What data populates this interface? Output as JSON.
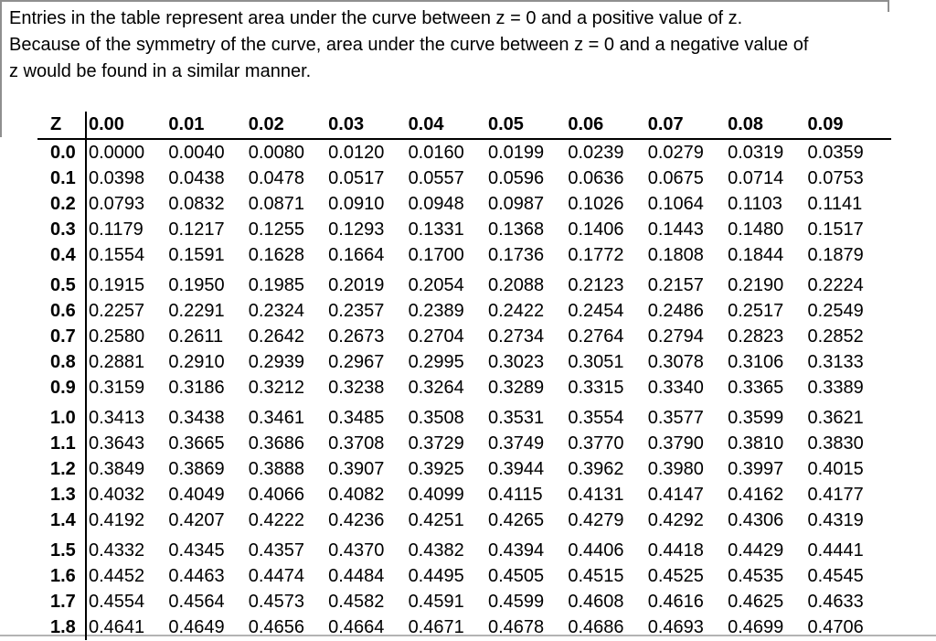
{
  "intro": {
    "lines": [
      "Entries in the table represent area under the curve between z = 0 and a positive value of z.",
      "Because of the symmetry of the curve, area under the curve between z = 0 and a negative value of",
      "z would be found in a similar manner."
    ]
  },
  "colors": {
    "frame_gray": "#8f8f8f",
    "rule_black": "#000000"
  },
  "table": {
    "corner_label": "Z",
    "column_headers": [
      "0.00",
      "0.01",
      "0.02",
      "0.03",
      "0.04",
      "0.05",
      "0.06",
      "0.07",
      "0.08",
      "0.09"
    ],
    "groups": [
      {
        "rows": [
          {
            "z": "0.0",
            "values": [
              "0.0000",
              "0.0040",
              "0.0080",
              "0.0120",
              "0.0160",
              "0.0199",
              "0.0239",
              "0.0279",
              "0.0319",
              "0.0359"
            ]
          },
          {
            "z": "0.1",
            "values": [
              "0.0398",
              "0.0438",
              "0.0478",
              "0.0517",
              "0.0557",
              "0.0596",
              "0.0636",
              "0.0675",
              "0.0714",
              "0.0753"
            ]
          },
          {
            "z": "0.2",
            "values": [
              "0.0793",
              "0.0832",
              "0.0871",
              "0.0910",
              "0.0948",
              "0.0987",
              "0.1026",
              "0.1064",
              "0.1103",
              "0.1141"
            ]
          },
          {
            "z": "0.3",
            "values": [
              "0.1179",
              "0.1217",
              "0.1255",
              "0.1293",
              "0.1331",
              "0.1368",
              "0.1406",
              "0.1443",
              "0.1480",
              "0.1517"
            ]
          },
          {
            "z": "0.4",
            "values": [
              "0.1554",
              "0.1591",
              "0.1628",
              "0.1664",
              "0.1700",
              "0.1736",
              "0.1772",
              "0.1808",
              "0.1844",
              "0.1879"
            ]
          }
        ]
      },
      {
        "rows": [
          {
            "z": "0.5",
            "values": [
              "0.1915",
              "0.1950",
              "0.1985",
              "0.2019",
              "0.2054",
              "0.2088",
              "0.2123",
              "0.2157",
              "0.2190",
              "0.2224"
            ]
          },
          {
            "z": "0.6",
            "values": [
              "0.2257",
              "0.2291",
              "0.2324",
              "0.2357",
              "0.2389",
              "0.2422",
              "0.2454",
              "0.2486",
              "0.2517",
              "0.2549"
            ]
          },
          {
            "z": "0.7",
            "values": [
              "0.2580",
              "0.2611",
              "0.2642",
              "0.2673",
              "0.2704",
              "0.2734",
              "0.2764",
              "0.2794",
              "0.2823",
              "0.2852"
            ]
          },
          {
            "z": "0.8",
            "values": [
              "0.2881",
              "0.2910",
              "0.2939",
              "0.2967",
              "0.2995",
              "0.3023",
              "0.3051",
              "0.3078",
              "0.3106",
              "0.3133"
            ]
          },
          {
            "z": "0.9",
            "values": [
              "0.3159",
              "0.3186",
              "0.3212",
              "0.3238",
              "0.3264",
              "0.3289",
              "0.3315",
              "0.3340",
              "0.3365",
              "0.3389"
            ]
          }
        ]
      },
      {
        "rows": [
          {
            "z": "1.0",
            "values": [
              "0.3413",
              "0.3438",
              "0.3461",
              "0.3485",
              "0.3508",
              "0.3531",
              "0.3554",
              "0.3577",
              "0.3599",
              "0.3621"
            ]
          },
          {
            "z": "1.1",
            "values": [
              "0.3643",
              "0.3665",
              "0.3686",
              "0.3708",
              "0.3729",
              "0.3749",
              "0.3770",
              "0.3790",
              "0.3810",
              "0.3830"
            ]
          },
          {
            "z": "1.2",
            "values": [
              "0.3849",
              "0.3869",
              "0.3888",
              "0.3907",
              "0.3925",
              "0.3944",
              "0.3962",
              "0.3980",
              "0.3997",
              "0.4015"
            ]
          },
          {
            "z": "1.3",
            "values": [
              "0.4032",
              "0.4049",
              "0.4066",
              "0.4082",
              "0.4099",
              "0.4115",
              "0.4131",
              "0.4147",
              "0.4162",
              "0.4177"
            ]
          },
          {
            "z": "1.4",
            "values": [
              "0.4192",
              "0.4207",
              "0.4222",
              "0.4236",
              "0.4251",
              "0.4265",
              "0.4279",
              "0.4292",
              "0.4306",
              "0.4319"
            ]
          }
        ]
      },
      {
        "rows": [
          {
            "z": "1.5",
            "values": [
              "0.4332",
              "0.4345",
              "0.4357",
              "0.4370",
              "0.4382",
              "0.4394",
              "0.4406",
              "0.4418",
              "0.4429",
              "0.4441"
            ]
          },
          {
            "z": "1.6",
            "values": [
              "0.4452",
              "0.4463",
              "0.4474",
              "0.4484",
              "0.4495",
              "0.4505",
              "0.4515",
              "0.4525",
              "0.4535",
              "0.4545"
            ]
          },
          {
            "z": "1.7",
            "values": [
              "0.4554",
              "0.4564",
              "0.4573",
              "0.4582",
              "0.4591",
              "0.4599",
              "0.4608",
              "0.4616",
              "0.4625",
              "0.4633"
            ]
          },
          {
            "z": "1.8",
            "values": [
              "0.4641",
              "0.4649",
              "0.4656",
              "0.4664",
              "0.4671",
              "0.4678",
              "0.4686",
              "0.4693",
              "0.4699",
              "0.4706"
            ]
          }
        ]
      }
    ]
  }
}
